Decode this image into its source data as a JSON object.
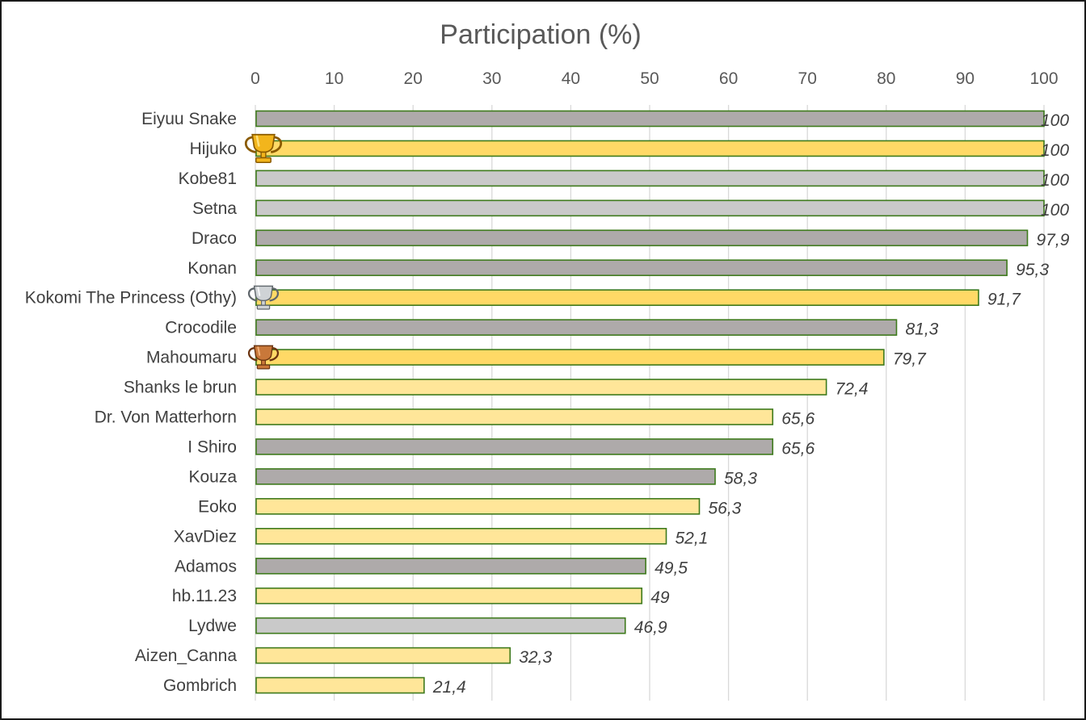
{
  "chart_data": {
    "type": "bar",
    "orientation": "horizontal",
    "title": "Participation (%)",
    "xlabel": "",
    "ylabel": "",
    "xlim": [
      0,
      100
    ],
    "ticks": [
      0,
      10,
      20,
      30,
      40,
      50,
      60,
      70,
      80,
      90,
      100
    ],
    "axis_position": "top",
    "grid": true,
    "colors": {
      "gold": "#ffd966",
      "light_gold": "#ffe699",
      "dark_gray": "#aeaaaa",
      "light_gray": "#c9c9c9",
      "border": "#3e7a1c",
      "gridline": "#d9d9d9"
    },
    "bars": [
      {
        "label": "Eiyuu Snake",
        "value": 100,
        "display": "100",
        "color": "dark_gray",
        "trophy": ""
      },
      {
        "label": "Hijuko",
        "value": 100,
        "display": "100",
        "color": "gold",
        "trophy": "gold"
      },
      {
        "label": "Kobe81",
        "value": 100,
        "display": "100",
        "color": "light_gray",
        "trophy": ""
      },
      {
        "label": "Setna",
        "value": 100,
        "display": "100",
        "color": "light_gray",
        "trophy": ""
      },
      {
        "label": "Draco",
        "value": 97.9,
        "display": "97,9",
        "color": "dark_gray",
        "trophy": ""
      },
      {
        "label": "Konan",
        "value": 95.3,
        "display": "95,3",
        "color": "dark_gray",
        "trophy": ""
      },
      {
        "label": "Kokomi The Princess (Othy)",
        "value": 91.7,
        "display": "91,7",
        "color": "gold",
        "trophy": "silver"
      },
      {
        "label": "Crocodile",
        "value": 81.3,
        "display": "81,3",
        "color": "dark_gray",
        "trophy": ""
      },
      {
        "label": "Mahoumaru",
        "value": 79.7,
        "display": "79,7",
        "color": "gold",
        "trophy": "bronze"
      },
      {
        "label": "Shanks le brun",
        "value": 72.4,
        "display": "72,4",
        "color": "light_gold",
        "trophy": ""
      },
      {
        "label": "Dr. Von Matterhorn",
        "value": 65.6,
        "display": "65,6",
        "color": "light_gold",
        "trophy": ""
      },
      {
        "label": "I Shiro",
        "value": 65.6,
        "display": "65,6",
        "color": "dark_gray",
        "trophy": ""
      },
      {
        "label": "Kouza",
        "value": 58.3,
        "display": "58,3",
        "color": "dark_gray",
        "trophy": ""
      },
      {
        "label": "Eoko",
        "value": 56.3,
        "display": "56,3",
        "color": "light_gold",
        "trophy": ""
      },
      {
        "label": "XavDiez",
        "value": 52.1,
        "display": "52,1",
        "color": "light_gold",
        "trophy": ""
      },
      {
        "label": "Adamos",
        "value": 49.5,
        "display": "49,5",
        "color": "dark_gray",
        "trophy": ""
      },
      {
        "label": "hb.11.23",
        "value": 49,
        "display": "49",
        "color": "light_gold",
        "trophy": ""
      },
      {
        "label": "Lydwe",
        "value": 46.9,
        "display": "46,9",
        "color": "light_gray",
        "trophy": ""
      },
      {
        "label": "Aizen_Canna",
        "value": 32.3,
        "display": "32,3",
        "color": "light_gold",
        "trophy": ""
      },
      {
        "label": "Gombrich",
        "value": 21.4,
        "display": "21,4",
        "color": "light_gold",
        "trophy": ""
      }
    ]
  }
}
